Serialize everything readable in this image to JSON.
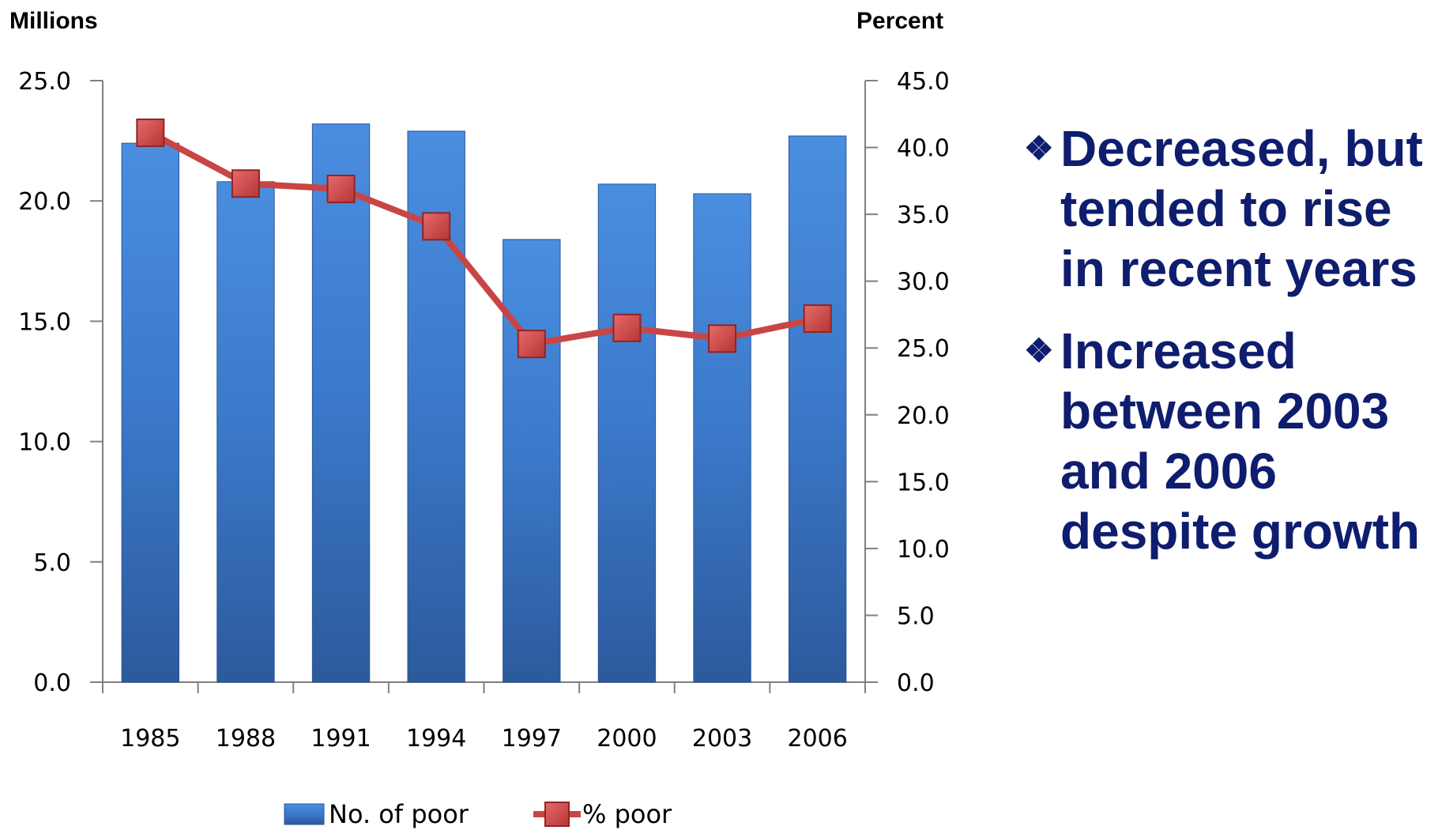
{
  "chart_data": {
    "type": "bar",
    "categories": [
      "1985",
      "1988",
      "1991",
      "1994",
      "1997",
      "2000",
      "2003",
      "2006"
    ],
    "series": [
      {
        "name": "No. of poor",
        "type": "bar",
        "axis": "left",
        "values": [
          22.4,
          20.8,
          23.2,
          22.9,
          18.4,
          20.7,
          20.3,
          22.7
        ],
        "color": "#3a78c9"
      },
      {
        "name": "% poor",
        "type": "line",
        "axis": "right",
        "values": [
          41.1,
          37.3,
          36.9,
          34.1,
          25.3,
          26.5,
          25.7,
          27.2
        ],
        "color": "#c94545"
      }
    ],
    "y_left": {
      "label": "Millions",
      "lim": [
        0,
        25
      ],
      "ticks": [
        "0.0",
        "5.0",
        "10.0",
        "15.0",
        "20.0",
        "25.0"
      ]
    },
    "y_right": {
      "label": "Percent",
      "lim": [
        0,
        45
      ],
      "ticks": [
        "0.0",
        "5.0",
        "10.0",
        "15.0",
        "20.0",
        "25.0",
        "30.0",
        "35.0",
        "40.0",
        "45.0"
      ]
    },
    "legend_position": "bottom",
    "grid": false
  },
  "bullets": [
    {
      "icon": "diamond-bullet-icon",
      "glyph": "❖",
      "text": "Decreased, but tended to rise in recent years"
    },
    {
      "icon": "diamond-bullet-icon",
      "glyph": "❖",
      "text": "Increased between 2003 and 2006 despite growth"
    }
  ]
}
